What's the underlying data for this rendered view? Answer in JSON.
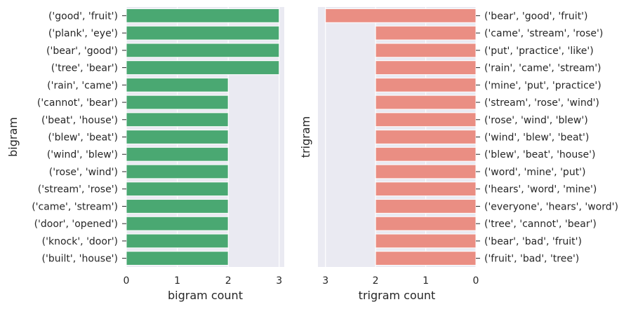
{
  "chart_data": [
    {
      "type": "bar",
      "orientation": "horizontal",
      "xlabel": "bigram count",
      "ylabel": "bigram",
      "xlim": [
        0,
        3.1
      ],
      "xticks": [
        "0",
        "1",
        "2",
        "3"
      ],
      "bar_color": "#4aa872",
      "grid": true,
      "categories": [
        "('good', 'fruit')",
        "('plank', 'eye')",
        "('bear', 'good')",
        "('tree', 'bear')",
        "('rain', 'came')",
        "('cannot', 'bear')",
        "('beat', 'house')",
        "('blew', 'beat')",
        "('wind', 'blew')",
        "('rose', 'wind')",
        "('stream', 'rose')",
        "('came', 'stream')",
        "('door', 'opened')",
        "('knock', 'door')",
        "('built', 'house')"
      ],
      "values": [
        3,
        3,
        3,
        3,
        2,
        2,
        2,
        2,
        2,
        2,
        2,
        2,
        2,
        2,
        2
      ]
    },
    {
      "type": "bar",
      "orientation": "horizontal",
      "xaxis_inverted": true,
      "yaxis_side": "right",
      "xlabel": "trigram count",
      "ylabel": "trigram",
      "xlim": [
        3.15,
        0
      ],
      "xticks": [
        "3",
        "2",
        "1",
        "0"
      ],
      "bar_color": "#ea8e83",
      "grid": true,
      "categories": [
        "('bear', 'good', 'fruit')",
        "('came', 'stream', 'rose')",
        "('put', 'practice', 'like')",
        "('rain', 'came', 'stream')",
        "('mine', 'put', 'practice')",
        "('stream', 'rose', 'wind')",
        "('rose', 'wind', 'blew')",
        "('wind', 'blew', 'beat')",
        "('blew', 'beat', 'house')",
        "('word', 'mine', 'put')",
        "('hears', 'word', 'mine')",
        "('everyone', 'hears', 'word')",
        "('tree', 'cannot', 'bear')",
        "('bear', 'bad', 'fruit')",
        "('fruit', 'bad', 'tree')"
      ],
      "values": [
        3,
        2,
        2,
        2,
        2,
        2,
        2,
        2,
        2,
        2,
        2,
        2,
        2,
        2,
        2
      ]
    }
  ]
}
